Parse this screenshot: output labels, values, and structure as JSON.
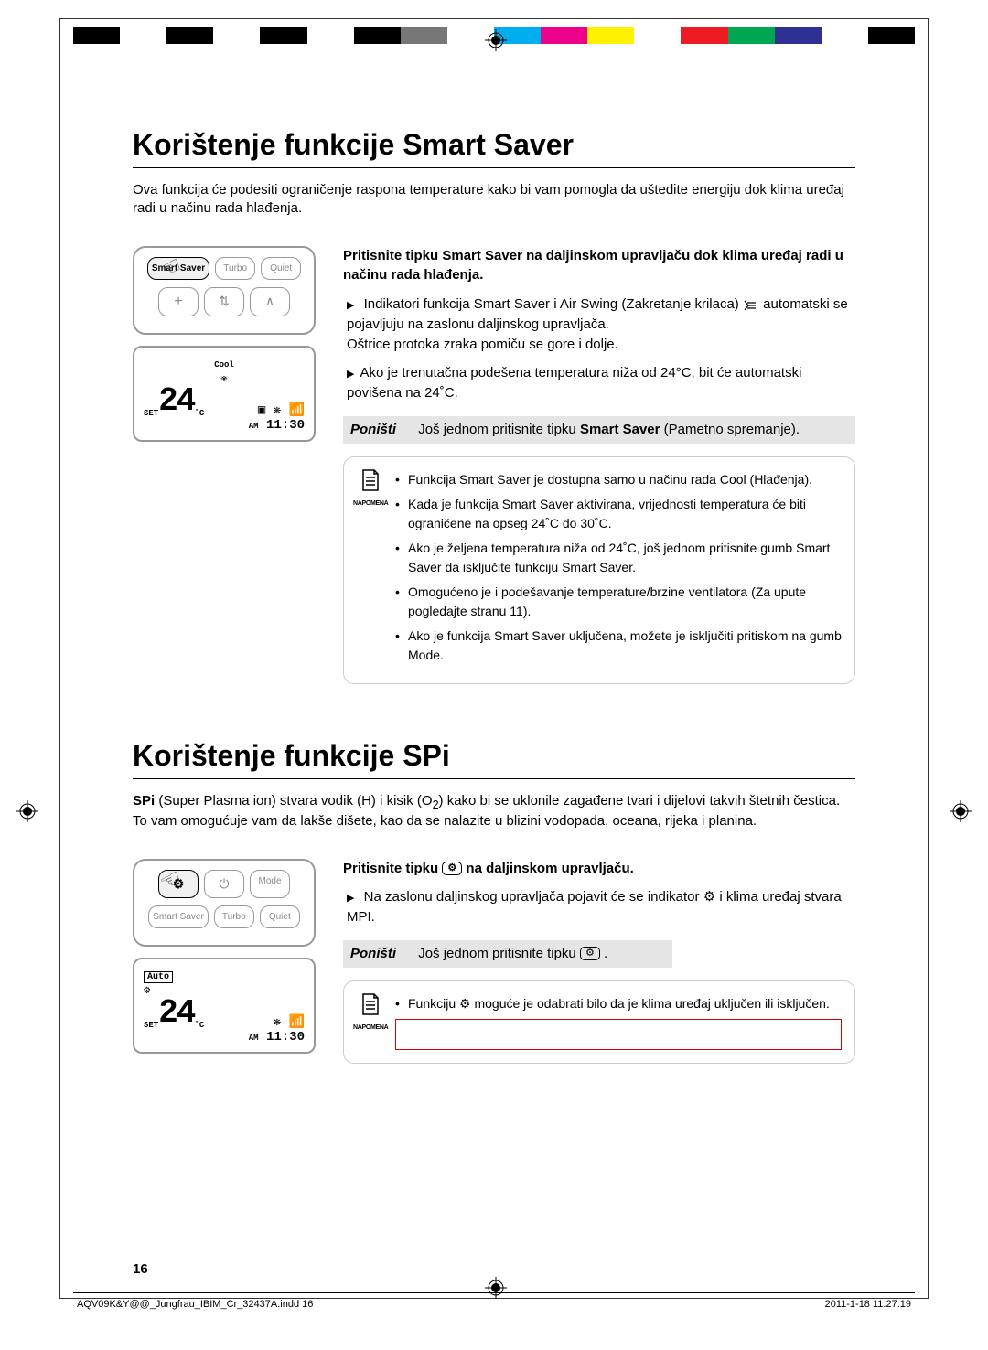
{
  "colorbar": [
    "#000000",
    "#ffffff",
    "#000000",
    "#ffffff",
    "#000000",
    "#ffffff",
    "#000000",
    "#777777",
    "#ffffff",
    "#00aeef",
    "#ec008c",
    "#fff200",
    "#ffffff",
    "#ed1c24",
    "#00a651",
    "#2e3192",
    "#ffffff",
    "#000000"
  ],
  "section1": {
    "title": "Korištenje funkcije Smart Saver",
    "intro": "Ova funkcija će podesiti ograničenje raspona temperature kako bi vam pomogla da uštedite energiju dok klima uređaj radi u načinu rada hlađenja.",
    "remote": {
      "buttons": [
        "Smart Saver",
        "Turbo",
        "Quiet"
      ],
      "buttons2": [
        "+",
        "⇅",
        "∧"
      ]
    },
    "display": {
      "mode": "Cool",
      "set": "SET",
      "temp": "24",
      "deg": "˚C",
      "am": "AM",
      "time": "11:30"
    },
    "instruction_pre": "Pritisnite tipku ",
    "instruction_bold": "Smart Saver",
    "instruction_post": " na daljinskom upravljaču dok klima uređaj radi u načinu rada hlađenja.",
    "bullet1a": "Indikatori funkcija Smart Saver i Air Swing (Zakretanje krilaca) ",
    "bullet1b": " automatski se pojavljuju na zaslonu daljinskog upravljača.",
    "bullet1c": "Oštrice protoka zraka pomiču se gore i dolje.",
    "bullet2": "Ako je trenutačna podešena temperatura niža od 24°C, bit će automatski povišena na 24˚C.",
    "cancel_label": "Poništi",
    "cancel_text_pre": "Još jednom pritisnite tipku ",
    "cancel_text_bold": "Smart Saver",
    "cancel_text_post": " (Pametno spremanje).",
    "note_label": "NAPOMENA",
    "notes": [
      "Funkcija Smart Saver je dostupna samo u načinu rada Cool (Hlađenja).",
      "Kada je funkcija Smart Saver aktivirana, vrijednosti temperatura će biti ograničene na opseg 24˚C do 30˚C.",
      "Ako je željena temperatura niža od 24˚C, još jednom pritisnite gumb Smart Saver da isključite funkciju Smart Saver.",
      "Omogućeno je i podešavanje temperature/brzine ventilatora (Za upute pogledajte stranu 11).",
      "Ako je funkcija Smart Saver uključena, možete je isključiti pritiskom na gumb Mode."
    ]
  },
  "section2": {
    "title_pre": "Korištenje funkcije ",
    "title_bold": "SPi",
    "intro_pre": "SPi",
    "intro_mid": " (Super Plasma ion) stvara vodik (H) i kisik (O",
    "intro_sub": "2",
    "intro_post": ") kako bi se uklonile zagađene tvari i dijelovi takvih štetnih čestica. To vam omogućuje vam da lakše dišete, kao da se nalazite u blizini vodopada, oceana, rijeka i planina.",
    "remote": {
      "row1": [
        "⚙",
        "⏻",
        "Mode"
      ],
      "row2": [
        "Smart Saver",
        "Turbo",
        "Quiet"
      ]
    },
    "display": {
      "mode": "Auto",
      "set": "SET",
      "temp": "24",
      "deg": "˚C",
      "am": "AM",
      "time": "11:30"
    },
    "instruction_pre": "Pritisnite tipku ",
    "instruction_post": " na daljinskom upravljaču.",
    "bullet1_pre": "Na zaslonu daljinskog upravljača pojavit će se indikator ",
    "bullet1_post": " i klima uređaj stvara MPI.",
    "cancel_label": "Poništi",
    "cancel_text_pre": "Još jednom pritisnite tipku ",
    "cancel_text_post": ".",
    "note_label": "NAPOMENA",
    "note1_pre": "Funkciju ",
    "note1_post": " moguće je odabrati bilo da je klima uređaj uključen ili isključen."
  },
  "page_number": "16",
  "footer": {
    "left": "AQV09K&Y@@_Jungfrau_IBIM_Cr_32437A.indd   16",
    "right": "2011-1-18   11:27:19"
  }
}
